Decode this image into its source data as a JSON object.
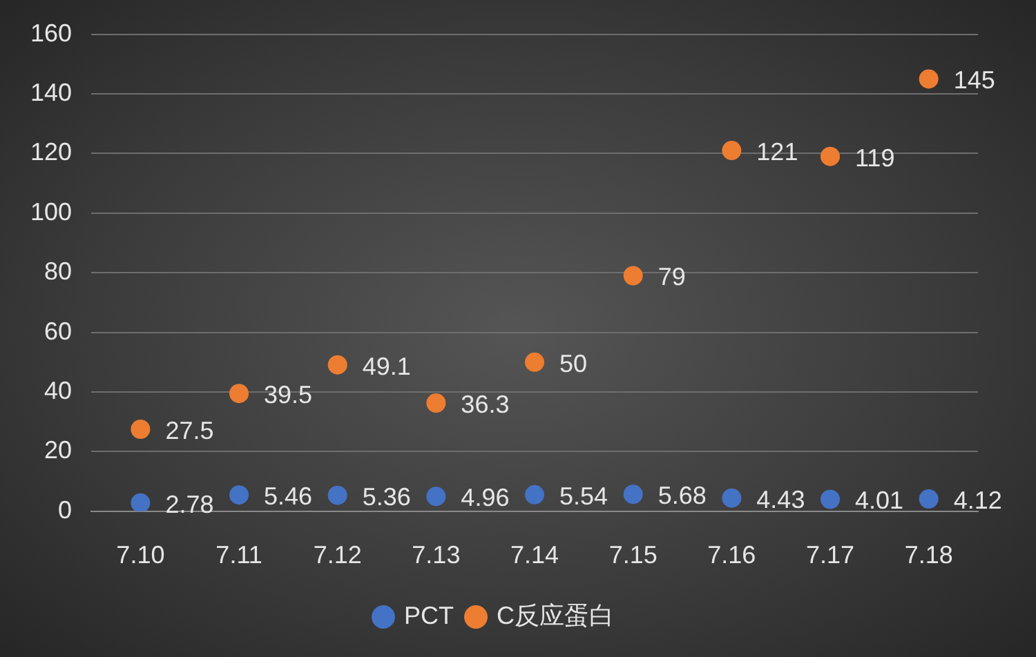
{
  "chart_data": {
    "type": "scatter",
    "categories": [
      "7.10",
      "7.11",
      "7.12",
      "7.13",
      "7.14",
      "7.15",
      "7.16",
      "7.17",
      "7.18"
    ],
    "series": [
      {
        "name": "PCT",
        "color": "#4472c4",
        "values": [
          2.78,
          5.46,
          5.36,
          4.96,
          5.54,
          5.68,
          4.43,
          4.01,
          4.12
        ]
      },
      {
        "name": "C反应蛋白",
        "color": "#ed7d31",
        "values": [
          27.5,
          39.5,
          49.1,
          36.3,
          50,
          79,
          121,
          119,
          145
        ]
      }
    ],
    "ylim": [
      0,
      160
    ],
    "yticks": [
      0,
      20,
      40,
      60,
      80,
      100,
      120,
      140,
      160
    ],
    "grid": "y",
    "legend": "bottom",
    "marker": "circle",
    "data_labels": true
  }
}
